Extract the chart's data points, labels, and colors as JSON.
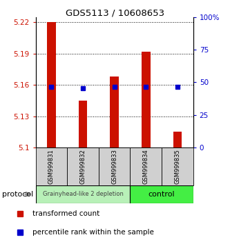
{
  "title": "GDS5113 / 10608653",
  "samples": [
    "GSM999831",
    "GSM999832",
    "GSM999833",
    "GSM999834",
    "GSM999835"
  ],
  "bar_values": [
    5.22,
    5.145,
    5.168,
    5.192,
    5.115
  ],
  "percentile_values": [
    5.158,
    5.157,
    5.158,
    5.158,
    5.158
  ],
  "baseline": 5.1,
  "ylim": [
    5.1,
    5.225
  ],
  "yticks": [
    5.1,
    5.13,
    5.16,
    5.19,
    5.22
  ],
  "ytick_labels": [
    "5.1",
    "5.13",
    "5.16",
    "5.19",
    "5.22"
  ],
  "y2ticks": [
    0,
    25,
    50,
    75,
    100
  ],
  "y2tick_labels": [
    "0",
    "25",
    "50",
    "75",
    "100%"
  ],
  "groups": [
    {
      "label": "Grainyhead-like 2 depletion",
      "n_samples": 3,
      "color": "#b8f0b8"
    },
    {
      "label": "control",
      "n_samples": 2,
      "color": "#44ee44"
    }
  ],
  "bar_color": "#cc1100",
  "percentile_color": "#0000cc",
  "grid_color": "#000000",
  "ylabel_color": "#cc1100",
  "y2label_color": "#0000cc",
  "protocol_label": "protocol",
  "legend_items": [
    {
      "color": "#cc1100",
      "label": "transformed count"
    },
    {
      "color": "#0000cc",
      "label": "percentile rank within the sample"
    }
  ]
}
